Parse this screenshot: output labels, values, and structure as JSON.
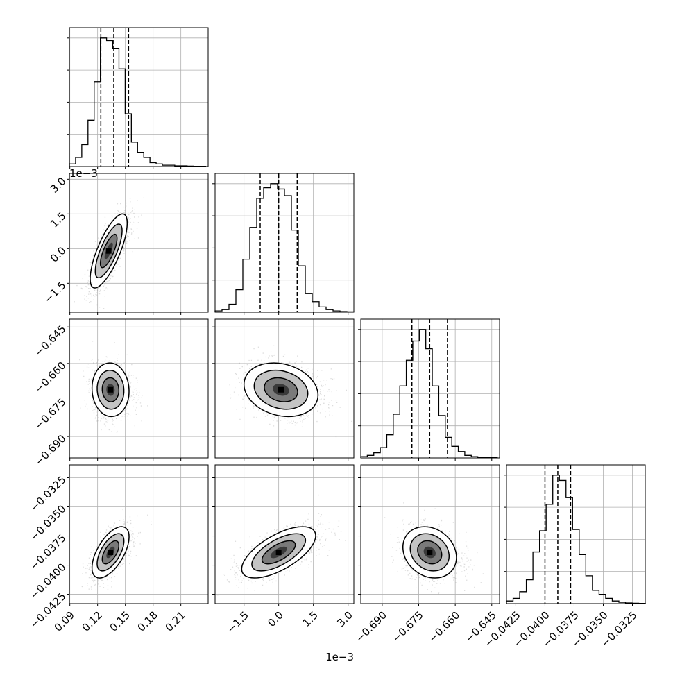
{
  "chart_data": {
    "type": "corner",
    "grid": true,
    "parameters": [
      {
        "id": "p0",
        "ticks": [
          "0.09",
          "0.12",
          "0.15",
          "0.18",
          "0.21"
        ],
        "tick_values": [
          0.09,
          0.12,
          0.15,
          0.18,
          0.21
        ],
        "range": [
          0.0895,
          0.2395
        ],
        "offset_text": "",
        "quantiles": [
          0.1235,
          0.1375,
          0.1535
        ],
        "hist": {
          "edges_start": 0.0895,
          "bin_width": 0.0067,
          "counts": [
            2,
            7,
            17,
            36,
            66,
            100,
            98,
            92,
            76,
            41,
            19,
            11,
            7,
            3,
            2,
            1,
            1,
            0.5,
            0.5,
            0.3,
            0.2,
            0.2
          ]
        }
      },
      {
        "id": "p1",
        "ticks": [
          "-1.5",
          "0.0",
          "1.5",
          "3.0"
        ],
        "tick_values": [
          -1.5,
          0.0,
          1.5,
          3.0
        ],
        "range": [
          -2.75,
          3.25
        ],
        "offset_text": "1e−3",
        "quantiles": [
          -0.8,
          0.0,
          0.8
        ],
        "hist": {
          "edges_start": -2.75,
          "bin_width": 0.3,
          "counts": [
            1,
            2,
            6,
            17,
            40,
            64,
            86,
            94,
            97,
            93,
            88,
            62,
            35,
            14,
            8,
            4,
            2,
            1,
            0.5,
            0.3
          ]
        }
      },
      {
        "id": "p2",
        "ticks": [
          "-0.690",
          "-0.675",
          "-0.660",
          "-0.645"
        ],
        "tick_values": [
          -0.69,
          -0.675,
          -0.66,
          -0.645
        ],
        "range": [
          -0.6988,
          -0.6418
        ],
        "offset_text": "",
        "quantiles": [
          -0.6778,
          -0.6705,
          -0.6632
        ],
        "hist": {
          "edges_start": -0.6988,
          "bin_width": 0.00267,
          "counts": [
            1,
            2,
            4,
            8,
            18,
            34,
            56,
            76,
            91,
            100,
            85,
            56,
            33,
            16,
            9,
            5,
            2,
            1,
            0.5,
            0.3,
            0.2
          ]
        }
      },
      {
        "id": "p3",
        "ticks": [
          "-0.0425",
          "-0.0400",
          "-0.0375",
          "-0.0350",
          "-0.0325"
        ],
        "tick_values": [
          -0.0425,
          -0.04,
          -0.0375,
          -0.035,
          -0.0325
        ],
        "range": [
          -0.0433,
          -0.0314
        ],
        "offset_text": "",
        "quantiles": [
          -0.04,
          -0.0389,
          -0.0378
        ],
        "hist": {
          "edges_start": -0.0433,
          "bin_width": 0.000567,
          "counts": [
            2,
            4,
            9,
            18,
            39,
            55,
            75,
            97,
            93,
            80,
            56,
            37,
            21,
            10,
            7,
            4,
            2,
            1,
            0.5,
            0.3,
            0.2
          ]
        }
      }
    ],
    "pairs": [
      {
        "row": 1,
        "col": 0,
        "center": [
          0.132,
          -0.1
        ],
        "spread": [
          0.01,
          0.8
        ],
        "rho": 0.75
      },
      {
        "row": 2,
        "col": 0,
        "center": [
          0.134,
          -0.6708
        ],
        "spread": [
          0.01,
          0.0055
        ],
        "rho": -0.05
      },
      {
        "row": 2,
        "col": 1,
        "center": [
          0.1,
          -0.6708
        ],
        "spread": [
          0.8,
          0.0055
        ],
        "rho": -0.2
      },
      {
        "row": 3,
        "col": 0,
        "center": [
          0.134,
          -0.0389
        ],
        "spread": [
          0.01,
          0.0011
        ],
        "rho": 0.6
      },
      {
        "row": 3,
        "col": 1,
        "center": [
          0.0,
          -0.0389
        ],
        "spread": [
          0.8,
          0.0011
        ],
        "rho": 0.65
      },
      {
        "row": 3,
        "col": 2,
        "center": [
          -0.6705,
          -0.0389
        ],
        "spread": [
          0.0055,
          0.0011
        ],
        "rho": -0.2
      }
    ]
  }
}
